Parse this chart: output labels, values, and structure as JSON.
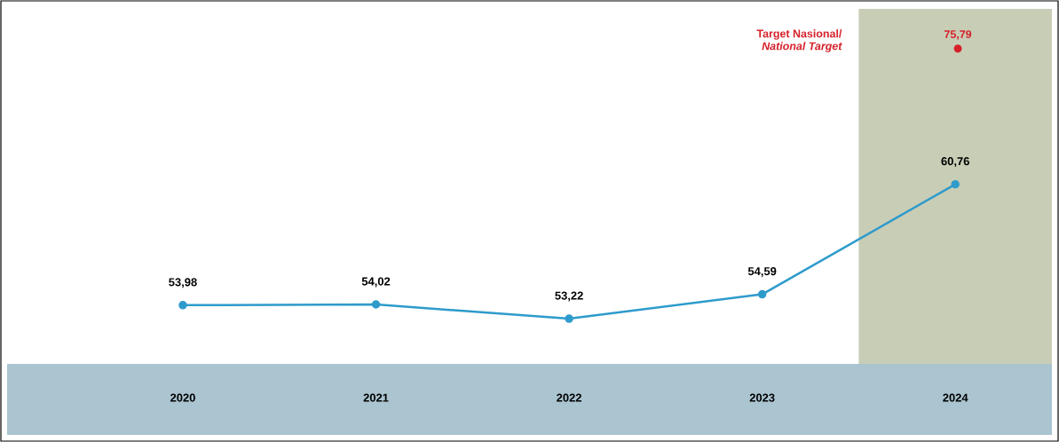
{
  "chart_data": {
    "type": "line",
    "categories": [
      "2020",
      "2021",
      "2022",
      "2023",
      "2024"
    ],
    "series": [
      {
        "color": "#2e9bcb",
        "values": [
          53.98,
          54.02,
          53.22,
          54.59,
          60.76
        ],
        "value_labels": [
          "53,98",
          "54,02",
          "53,22",
          "54,59",
          "60,76"
        ]
      }
    ],
    "tick_labels": "x",
    "marker": "circle",
    "line_style": "solid",
    "bands": [
      {
        "axis": "x",
        "from": "2024",
        "to": "2024",
        "color": "#c8cdb6"
      }
    ],
    "annotations": [
      "Target Nasional/",
      "National Target",
      "75,79"
    ]
  }
}
